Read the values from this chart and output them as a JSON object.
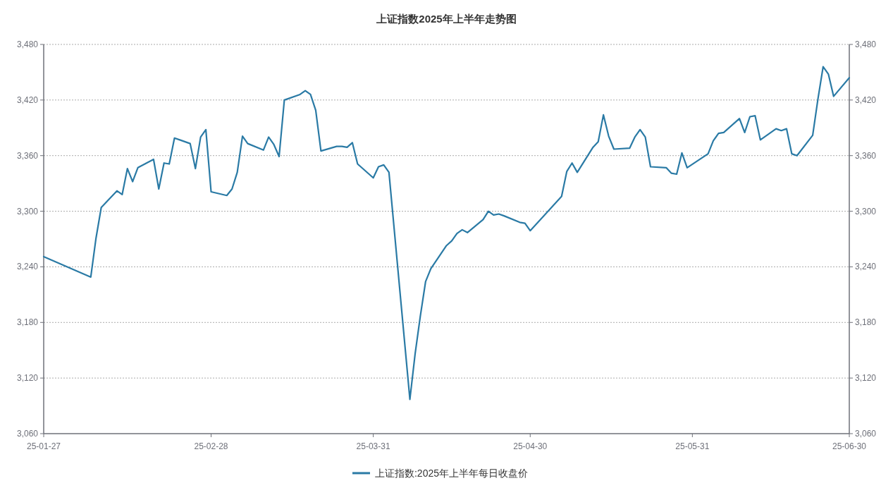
{
  "chart_data": {
    "type": "line",
    "title": "上证指数2025年上半年走势图",
    "x": [
      "2025-01-27",
      "2025-02-05",
      "2025-02-06",
      "2025-02-07",
      "2025-02-10",
      "2025-02-11",
      "2025-02-12",
      "2025-02-13",
      "2025-02-14",
      "2025-02-17",
      "2025-02-18",
      "2025-02-19",
      "2025-02-20",
      "2025-02-21",
      "2025-02-24",
      "2025-02-25",
      "2025-02-26",
      "2025-02-27",
      "2025-02-28",
      "2025-03-03",
      "2025-03-04",
      "2025-03-05",
      "2025-03-06",
      "2025-03-07",
      "2025-03-10",
      "2025-03-11",
      "2025-03-12",
      "2025-03-13",
      "2025-03-14",
      "2025-03-17",
      "2025-03-18",
      "2025-03-19",
      "2025-03-20",
      "2025-03-21",
      "2025-03-24",
      "2025-03-25",
      "2025-03-26",
      "2025-03-27",
      "2025-03-28",
      "2025-03-31",
      "2025-04-01",
      "2025-04-02",
      "2025-04-03",
      "2025-04-07",
      "2025-04-08",
      "2025-04-09",
      "2025-04-10",
      "2025-04-11",
      "2025-04-14",
      "2025-04-15",
      "2025-04-16",
      "2025-04-17",
      "2025-04-18",
      "2025-04-21",
      "2025-04-22",
      "2025-04-23",
      "2025-04-24",
      "2025-04-25",
      "2025-04-28",
      "2025-04-29",
      "2025-04-30",
      "2025-05-06",
      "2025-05-07",
      "2025-05-08",
      "2025-05-09",
      "2025-05-12",
      "2025-05-13",
      "2025-05-14",
      "2025-05-15",
      "2025-05-16",
      "2025-05-19",
      "2025-05-20",
      "2025-05-21",
      "2025-05-22",
      "2025-05-23",
      "2025-05-26",
      "2025-05-27",
      "2025-05-28",
      "2025-05-29",
      "2025-05-30",
      "2025-06-03",
      "2025-06-04",
      "2025-06-05",
      "2025-06-06",
      "2025-06-09",
      "2025-06-10",
      "2025-06-11",
      "2025-06-12",
      "2025-06-13",
      "2025-06-16",
      "2025-06-17",
      "2025-06-18",
      "2025-06-19",
      "2025-06-20",
      "2025-06-23",
      "2025-06-24",
      "2025-06-25",
      "2025-06-26",
      "2025-06-27",
      "2025-06-30"
    ],
    "series": [
      {
        "name": "上证指数:2025年上半年每日收盘价",
        "color": "#2a7aa5",
        "values": [
          3251,
          3229,
          3271,
          3304,
          3322,
          3318,
          3346,
          3332,
          3347,
          3356,
          3324,
          3352,
          3351,
          3379,
          3373,
          3346,
          3380,
          3388,
          3321,
          3317,
          3324,
          3342,
          3381,
          3373,
          3366,
          3380,
          3372,
          3359,
          3420,
          3426,
          3430,
          3426,
          3409,
          3365,
          3370,
          3370,
          3369,
          3374,
          3351,
          3336,
          3348,
          3350,
          3342,
          3097,
          3146,
          3187,
          3224,
          3238,
          3263,
          3268,
          3276,
          3280,
          3277,
          3291,
          3300,
          3296,
          3297,
          3295,
          3288,
          3287,
          3279,
          3316,
          3343,
          3352,
          3342,
          3369,
          3375,
          3404,
          3381,
          3367,
          3368,
          3380,
          3388,
          3380,
          3348,
          3347,
          3341,
          3340,
          3363,
          3347,
          3362,
          3376,
          3384,
          3385,
          3400,
          3385,
          3402,
          3403,
          3377,
          3389,
          3387,
          3389,
          3362,
          3360,
          3382,
          3421,
          3456,
          3448,
          3424,
          3444
        ]
      }
    ],
    "xlim": [
      "2025-01-27",
      "2025-06-30"
    ],
    "xticks": [
      {
        "value": "2025-01-27",
        "label": "25-01-27"
      },
      {
        "value": "2025-02-28",
        "label": "25-02-28"
      },
      {
        "value": "2025-03-31",
        "label": "25-03-31"
      },
      {
        "value": "2025-04-30",
        "label": "25-04-30"
      },
      {
        "value": "2025-05-31",
        "label": "25-05-31"
      },
      {
        "value": "2025-06-30",
        "label": "25-06-30"
      }
    ],
    "ylim": [
      3060,
      3480
    ],
    "yticks": [
      {
        "value": 3060,
        "label": "3,060"
      },
      {
        "value": 3120,
        "label": "3,120"
      },
      {
        "value": 3180,
        "label": "3,180"
      },
      {
        "value": 3240,
        "label": "3,240"
      },
      {
        "value": 3300,
        "label": "3,300"
      },
      {
        "value": 3360,
        "label": "3,360"
      },
      {
        "value": 3420,
        "label": "3,420"
      },
      {
        "value": 3480,
        "label": "3,480"
      }
    ],
    "y2lim": [
      3060,
      3480
    ],
    "y2ticks": [
      {
        "value": 3060,
        "label": "3,060"
      },
      {
        "value": 3120,
        "label": "3,120"
      },
      {
        "value": 3180,
        "label": "3,180"
      },
      {
        "value": 3240,
        "label": "3,240"
      },
      {
        "value": 3300,
        "label": "3,300"
      },
      {
        "value": 3360,
        "label": "3,360"
      },
      {
        "value": 3420,
        "label": "3,420"
      },
      {
        "value": 3480,
        "label": "3,480"
      }
    ],
    "grid": "y",
    "legend": "bottom"
  }
}
